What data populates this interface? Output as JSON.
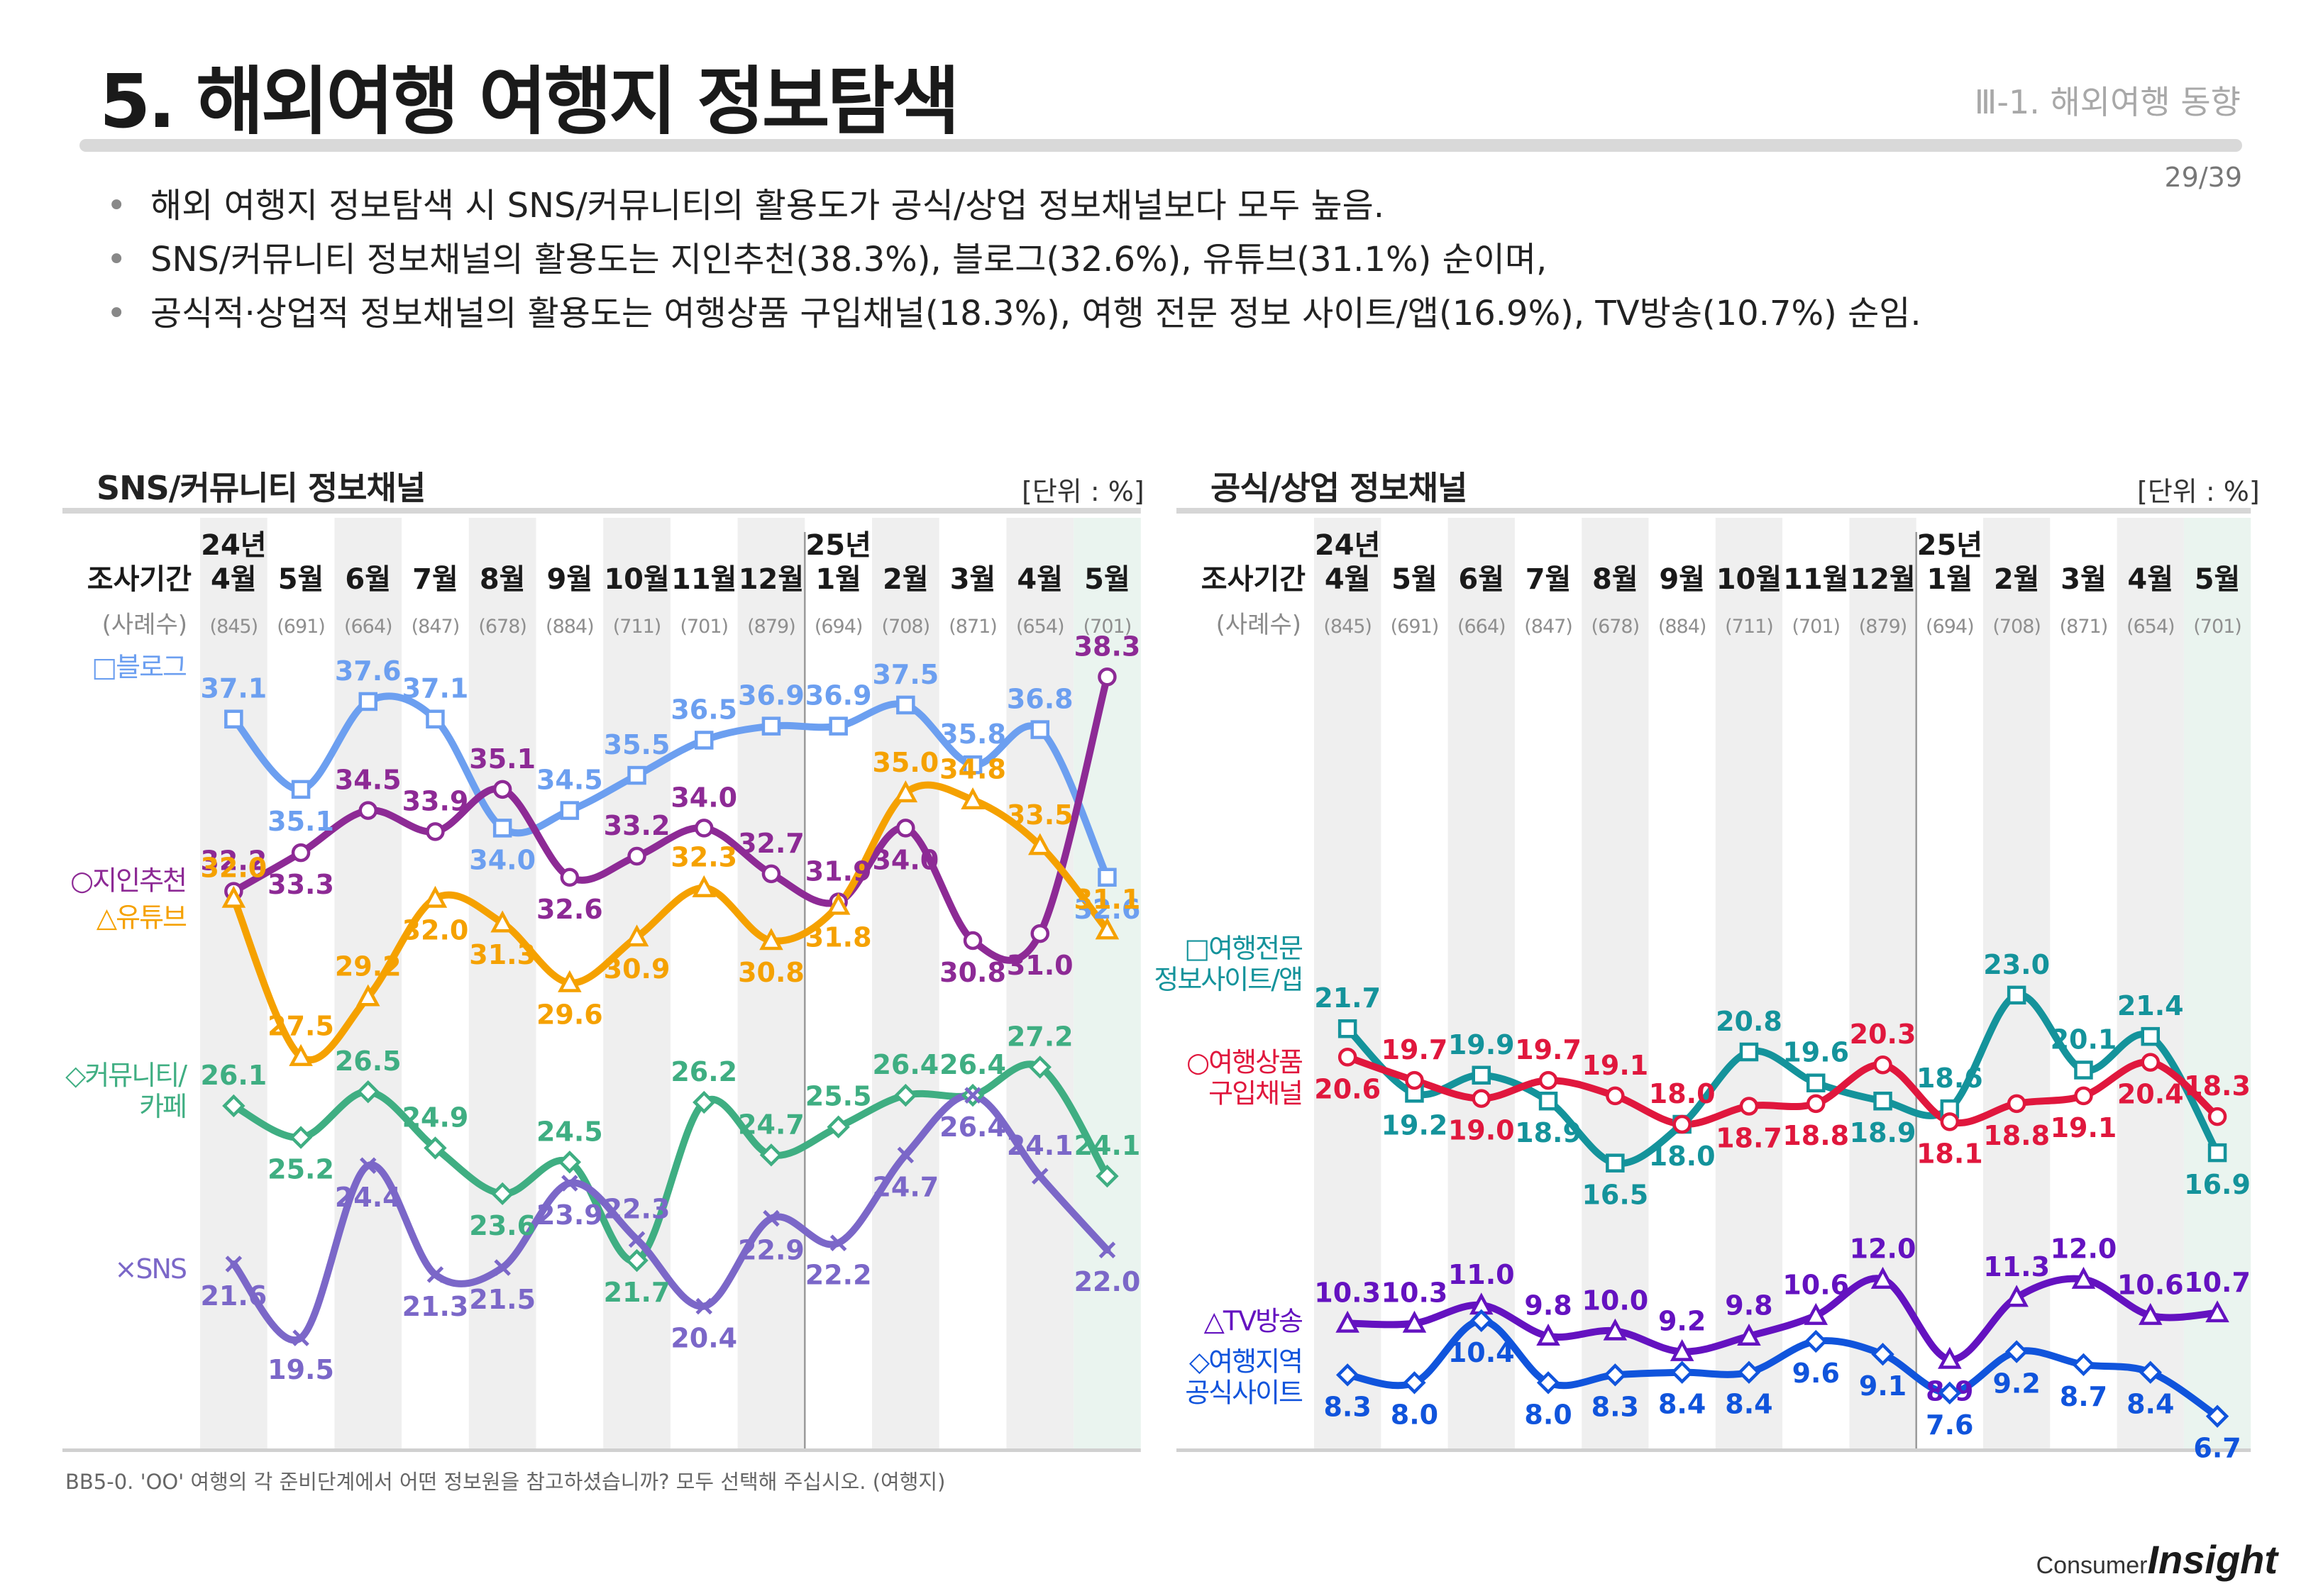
{
  "header": {
    "title": "5. 해외여행 여행지 정보탐색",
    "section": "Ⅲ-1. 해외여행 동향",
    "page": "29/39"
  },
  "bullets": [
    "해외 여행지 정보탐색 시 SNS/커뮤니티의 활용도가 공식/상업 정보채널보다 모두 높음.",
    "SNS/커뮤니티 정보채널의 활용도는 지인추천(38.3%), 블로그(32.6%), 유튜브(31.1%) 순이며,",
    "공식적·상업적 정보채널의 활용도는 여행상품 구입채널(18.3%), 여행 전문 정보 사이트/앱(16.9%), TV방송(10.7%) 순임."
  ],
  "footnote": "BB5-0. 'OO' 여행의 각 준비단계에서 어떤 정보원을 참고하셨습니까? 모두 선택해 주십시오. (여행지)",
  "brand": {
    "small": "Consumer",
    "big": "Insight"
  },
  "chart_data": [
    {
      "type": "line",
      "title": "SNS/커뮤니티 정보채널",
      "unit_label": "[단위 : %]",
      "period_label": "조사기간",
      "sample_label": "(사례수)",
      "year_labels": [
        {
          "index": 0,
          "text": "24년"
        },
        {
          "index": 9,
          "text": "25년"
        }
      ],
      "categories": [
        "4월",
        "5월",
        "6월",
        "7월",
        "8월",
        "9월",
        "10월",
        "11월",
        "12월",
        "1월",
        "2월",
        "3월",
        "4월",
        "5월"
      ],
      "sample_sizes": [
        "(845)",
        "(691)",
        "(664)",
        "(847)",
        "(678)",
        "(884)",
        "(711)",
        "(701)",
        "(879)",
        "(694)",
        "(708)",
        "(871)",
        "(654)",
        "(701)"
      ],
      "ylim": [
        17,
        40
      ],
      "series": [
        {
          "name": "□블로그",
          "marker": "square",
          "color": "#6c9ff0",
          "values": [
            37.1,
            35.1,
            37.6,
            37.1,
            34.0,
            34.5,
            35.5,
            36.5,
            36.9,
            36.9,
            37.5,
            35.8,
            36.8,
            32.6
          ]
        },
        {
          "name": "○지인추천",
          "marker": "circle",
          "color": "#8d2a95",
          "values": [
            32.2,
            33.3,
            34.5,
            33.9,
            35.1,
            32.6,
            33.2,
            34.0,
            32.7,
            31.9,
            34.0,
            30.8,
            31.0,
            38.3
          ]
        },
        {
          "name": "△유튜브",
          "marker": "triangle",
          "color": "#f5a100",
          "values": [
            32.0,
            27.5,
            29.2,
            32.0,
            31.3,
            29.6,
            30.9,
            32.3,
            30.8,
            31.8,
            35.0,
            34.8,
            33.5,
            31.1
          ]
        },
        {
          "name": "◇커뮤니티/카페",
          "marker": "diamond",
          "color": "#3fae82",
          "values": [
            26.1,
            25.2,
            26.5,
            24.9,
            23.6,
            24.5,
            21.7,
            26.2,
            24.7,
            25.5,
            26.4,
            26.4,
            27.2,
            24.1
          ]
        },
        {
          "name": "×SNS",
          "marker": "x",
          "color": "#7b67c8",
          "values": [
            21.6,
            19.5,
            24.4,
            21.3,
            21.5,
            23.9,
            22.3,
            20.4,
            22.9,
            22.2,
            24.7,
            26.4,
            24.1,
            22.0
          ]
        }
      ]
    },
    {
      "type": "line",
      "title": "공식/상업 정보채널",
      "unit_label": "[단위 : %]",
      "period_label": "조사기간",
      "sample_label": "(사례수)",
      "year_labels": [
        {
          "index": 0,
          "text": "24년"
        },
        {
          "index": 9,
          "text": "25년"
        }
      ],
      "categories": [
        "4월",
        "5월",
        "6월",
        "7월",
        "8월",
        "9월",
        "10월",
        "11월",
        "12월",
        "1월",
        "2월",
        "3월",
        "4월",
        "5월"
      ],
      "sample_sizes": [
        "(845)",
        "(691)",
        "(664)",
        "(847)",
        "(678)",
        "(884)",
        "(711)",
        "(701)",
        "(879)",
        "(694)",
        "(708)",
        "(871)",
        "(654)",
        "(701)"
      ],
      "ylim": [
        4,
        25
      ],
      "series": [
        {
          "name": "□여행전문 정보사이트/앱",
          "marker": "square",
          "color": "#14939b",
          "values": [
            21.7,
            19.2,
            19.9,
            18.9,
            16.5,
            18.0,
            20.8,
            19.6,
            18.9,
            18.6,
            23.0,
            20.1,
            21.4,
            16.9
          ]
        },
        {
          "name": "○여행상품 구입채널",
          "marker": "circle",
          "color": "#e0173d",
          "values": [
            20.6,
            19.7,
            19.0,
            19.7,
            19.1,
            18.0,
            18.7,
            18.8,
            20.3,
            18.1,
            18.8,
            19.1,
            20.4,
            18.3
          ]
        },
        {
          "name": "△TV방송",
          "marker": "triangle",
          "color": "#6412c0",
          "values": [
            10.3,
            10.3,
            11.0,
            9.8,
            10.0,
            9.2,
            9.8,
            10.6,
            12.0,
            8.9,
            11.3,
            12.0,
            10.6,
            10.7
          ]
        },
        {
          "name": "◇여행지역 공식사이트",
          "marker": "diamond",
          "color": "#1054dc",
          "values": [
            8.3,
            8.0,
            10.4,
            8.0,
            8.3,
            8.4,
            8.4,
            9.6,
            9.1,
            7.6,
            9.2,
            8.7,
            8.4,
            6.7
          ]
        }
      ]
    }
  ]
}
